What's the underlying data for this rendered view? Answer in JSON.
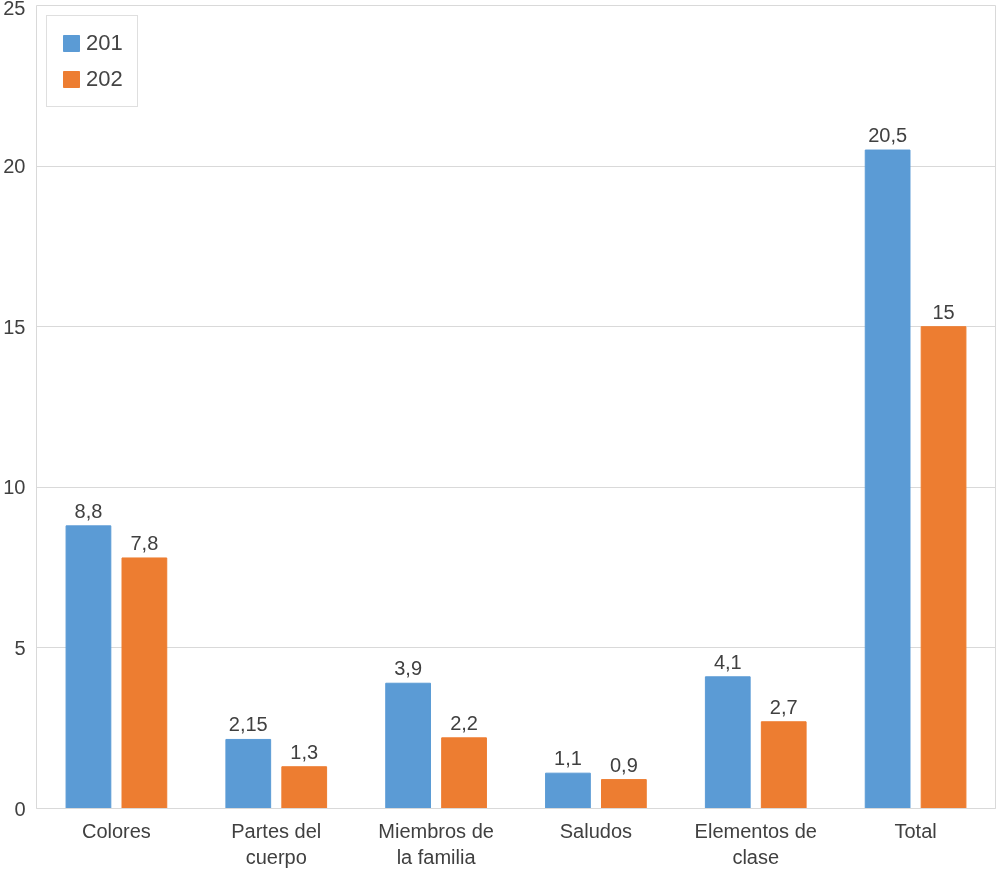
{
  "chart_data": {
    "type": "bar",
    "categories": [
      "Colores",
      "Partes del cuerpo",
      "Miembros de la familia",
      "Saludos",
      "Elementos de clase",
      "Total"
    ],
    "series": [
      {
        "name": "201",
        "color": "#5b9bd5",
        "values": [
          8.8,
          2.15,
          3.9,
          1.1,
          4.1,
          20.5
        ],
        "value_labels": [
          "8,8",
          "2,15",
          "3,9",
          "1,1",
          "4,1",
          "20,5"
        ]
      },
      {
        "name": "202",
        "color": "#ed7d31",
        "values": [
          7.8,
          1.3,
          2.2,
          0.9,
          2.7,
          15
        ],
        "value_labels": [
          "7,8",
          "1,3",
          "2,2",
          "0,9",
          "2,7",
          "15"
        ]
      }
    ],
    "ylim": [
      0,
      25
    ],
    "yticks": [
      0,
      5,
      10,
      15,
      20,
      25
    ],
    "grid": "y",
    "legend": "top left"
  }
}
